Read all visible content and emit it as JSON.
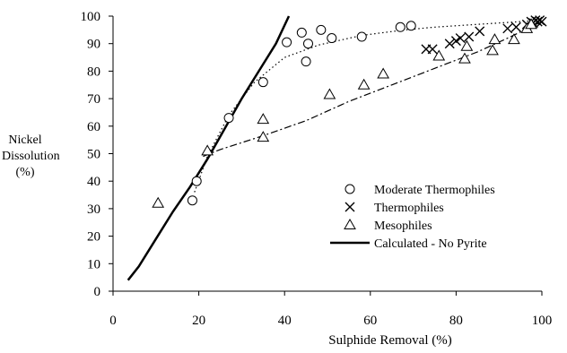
{
  "chart_data": {
    "type": "scatter",
    "title": "",
    "xlabel": "Sulphide Removal (%)",
    "ylabel_lines": [
      "Nickel",
      "Dissolution (%)"
    ],
    "xlim": [
      0,
      100
    ],
    "ylim": [
      0,
      100
    ],
    "xticks": [
      0,
      20,
      40,
      60,
      80,
      100
    ],
    "yticks": [
      0,
      10,
      20,
      30,
      40,
      50,
      60,
      70,
      80,
      90,
      100
    ],
    "grid": false,
    "legend_position": "right",
    "series": [
      {
        "name": "Moderate Thermophiles",
        "marker": "circle",
        "points": [
          [
            18.5,
            33
          ],
          [
            19.5,
            40
          ],
          [
            27,
            63
          ],
          [
            35,
            76
          ],
          [
            40.5,
            90.5
          ],
          [
            44,
            94
          ],
          [
            45,
            83.5
          ],
          [
            45.5,
            90
          ],
          [
            48.5,
            95
          ],
          [
            51,
            92
          ],
          [
            58,
            92.5
          ],
          [
            67,
            96
          ],
          [
            69.5,
            96.5
          ]
        ]
      },
      {
        "name": "Thermophiles",
        "marker": "x",
        "points": [
          [
            73,
            88
          ],
          [
            74.5,
            88
          ],
          [
            78.5,
            90
          ],
          [
            80,
            91
          ],
          [
            81,
            92
          ],
          [
            83,
            92.5
          ],
          [
            85.5,
            94.5
          ],
          [
            92,
            95.5
          ],
          [
            94,
            96
          ],
          [
            96.5,
            97
          ],
          [
            97.5,
            98
          ],
          [
            98,
            97.5
          ],
          [
            98.5,
            98.5
          ],
          [
            99,
            98
          ],
          [
            99.5,
            98.5
          ],
          [
            100,
            98
          ]
        ]
      },
      {
        "name": "Mesophiles",
        "marker": "triangle",
        "points": [
          [
            10.5,
            32
          ],
          [
            22,
            51
          ],
          [
            35,
            62.5
          ],
          [
            35,
            56
          ],
          [
            50.5,
            71.5
          ],
          [
            58.5,
            75
          ],
          [
            63,
            79
          ],
          [
            76,
            85.5
          ],
          [
            82,
            84.5
          ],
          [
            82.5,
            89
          ],
          [
            88.5,
            87.5
          ],
          [
            89,
            91.5
          ],
          [
            93.5,
            91.5
          ],
          [
            96.5,
            95.5
          ],
          [
            97.5,
            97
          ]
        ]
      },
      {
        "name": "Calculated - No Pyrite",
        "marker": "line",
        "points": [
          [
            3.5,
            4
          ],
          [
            6,
            9
          ],
          [
            10,
            19
          ],
          [
            14,
            29
          ],
          [
            18,
            38
          ],
          [
            22,
            48
          ],
          [
            26,
            59
          ],
          [
            30,
            70
          ],
          [
            34,
            80
          ],
          [
            38,
            90
          ],
          [
            41,
            100
          ]
        ]
      }
    ],
    "trendlines": [
      {
        "for": "Moderate Thermophiles",
        "style": "dotted",
        "points": [
          [
            19,
            36
          ],
          [
            22,
            49
          ],
          [
            27,
            64
          ],
          [
            33,
            76
          ],
          [
            40,
            85
          ],
          [
            48,
            89.5
          ],
          [
            58,
            93
          ],
          [
            68,
            95
          ],
          [
            75,
            96
          ],
          [
            85,
            97
          ],
          [
            100,
            98.5
          ]
        ]
      },
      {
        "for": "Mesophiles",
        "style": "dash-dot",
        "points": [
          [
            21,
            49
          ],
          [
            25,
            51.5
          ],
          [
            35,
            56.5
          ],
          [
            45,
            62
          ],
          [
            55,
            69
          ],
          [
            65,
            75
          ],
          [
            75,
            81
          ],
          [
            85,
            87
          ],
          [
            92,
            92
          ],
          [
            100,
            98
          ]
        ]
      }
    ]
  }
}
